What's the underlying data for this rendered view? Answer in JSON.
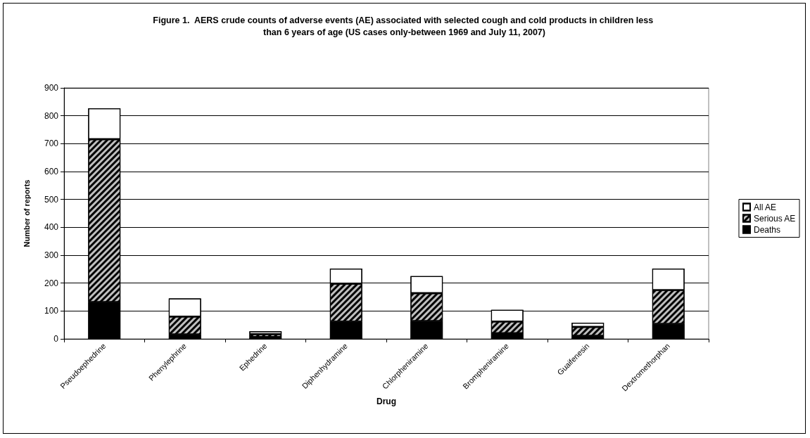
{
  "chart_data": {
    "type": "bar",
    "title": "Figure 1.  AERS crude counts of adverse events (AE) associated with selected cough and cold products in children less than 6 years of age (US cases only-between 1969 and July 11, 2007)",
    "xlabel": "Drug",
    "ylabel": "Number of reports",
    "categories": [
      "Pseudoephedrine",
      "Phenylephrine",
      "Ephedrine",
      "Diphenhydramine",
      "Chlorpheniramine",
      "Brompheniramine",
      "Guaifenesin",
      "Dextromethorphan"
    ],
    "stacked": true,
    "series": [
      {
        "name": "Deaths",
        "color": "#000000",
        "values": [
          132,
          16,
          7,
          62,
          64,
          20,
          11,
          54
        ]
      },
      {
        "name": "Serious AE",
        "color": "#bfbfbf",
        "values": [
          584,
          64,
          10,
          136,
          100,
          42,
          32,
          121
        ]
      },
      {
        "name": "All AE",
        "color": "#ffffff",
        "values": [
          111,
          65,
          10,
          54,
          61,
          42,
          15,
          77
        ]
      }
    ],
    "ylim": [
      0,
      900
    ],
    "yticks": [
      0,
      100,
      200,
      300,
      400,
      500,
      600,
      700,
      800,
      900
    ],
    "grid": "y",
    "legend": "right"
  }
}
